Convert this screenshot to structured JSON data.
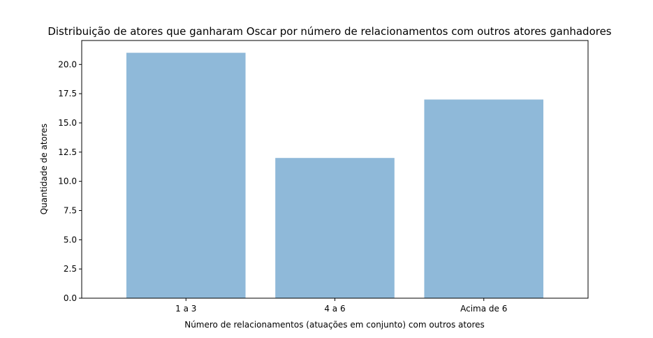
{
  "chart_data": {
    "type": "bar",
    "title": "Distribuição de atores que ganharam Oscar por número de relacionamentos com outros atores ganhadores",
    "xlabel": "Número de relacionamentos (atuações em conjunto) com outros atores",
    "ylabel": "Quantidade de atores",
    "categories": [
      "1 a 3",
      "4 a 6",
      "Acima de 6"
    ],
    "values": [
      21,
      12,
      17
    ],
    "ylim": [
      0,
      22.05
    ],
    "yticks": [
      0,
      2.5,
      5,
      7.5,
      10,
      12.5,
      15,
      17.5,
      20
    ],
    "ytick_labels": [
      "0.0",
      "2.5",
      "5.0",
      "7.5",
      "10.0",
      "12.5",
      "15.0",
      "17.5",
      "20.0"
    ],
    "bar_color": "#8fb9d9",
    "grid": false,
    "legend": false
  }
}
